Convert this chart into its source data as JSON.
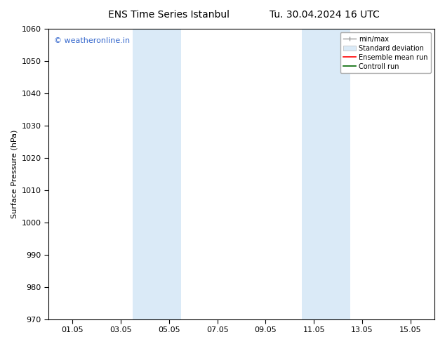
{
  "title_left": "ENS Time Series Istanbul",
  "title_right": "Tu. 30.04.2024 16 UTC",
  "ylabel": "Surface Pressure (hPa)",
  "ylim": [
    970,
    1060
  ],
  "yticks": [
    970,
    980,
    990,
    1000,
    1010,
    1020,
    1030,
    1040,
    1050,
    1060
  ],
  "xtick_labels": [
    "01.05",
    "03.05",
    "05.05",
    "07.05",
    "09.05",
    "11.05",
    "13.05",
    "15.05"
  ],
  "xtick_positions": [
    1,
    3,
    5,
    7,
    9,
    11,
    13,
    15
  ],
  "xlim": [
    0,
    16
  ],
  "shaded_bands": [
    {
      "x_start": 3.5,
      "x_end": 5.5
    },
    {
      "x_start": 10.5,
      "x_end": 12.5
    }
  ],
  "shaded_color": "#daeaf7",
  "background_color": "#ffffff",
  "watermark_text": "© weatheronline.in",
  "watermark_color": "#3366cc",
  "title_fontsize": 10,
  "ylabel_fontsize": 8,
  "tick_fontsize": 8,
  "watermark_fontsize": 8
}
